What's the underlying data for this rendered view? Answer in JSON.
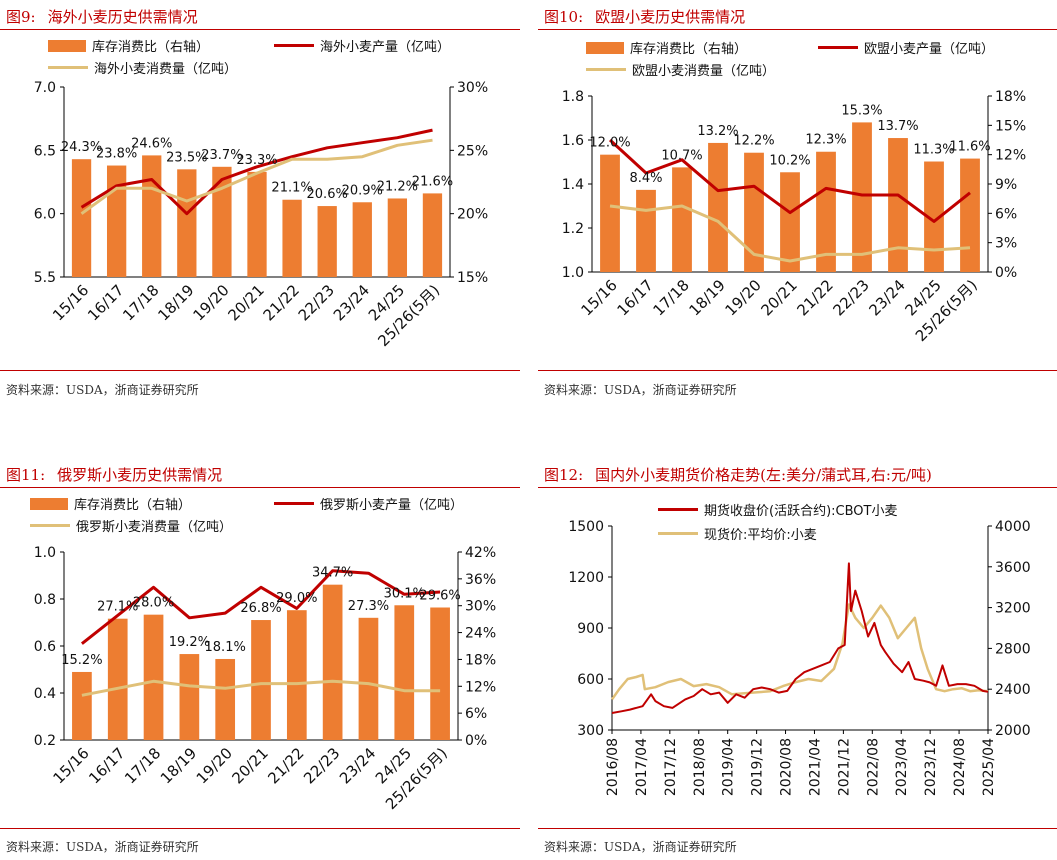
{
  "colors": {
    "bar": "#ed7d31",
    "red": "#c00000",
    "tan": "#e0c078",
    "title": "#c00000"
  },
  "source_text": "资料来源：USDA，浙商证券研究所",
  "charts": [
    {
      "fig_num": "图9:",
      "title": "海外小麦历史供需情况",
      "legend": {
        "bar": "库存消费比（右轴）",
        "line1": "海外小麦产量（亿吨）",
        "line2": "海外小麦消费量（亿吨）"
      },
      "chart_data": {
        "type": "bar+line",
        "categories": [
          "15/16",
          "16/17",
          "17/18",
          "18/19",
          "19/20",
          "20/21",
          "21/22",
          "22/23",
          "23/24",
          "24/25",
          "25/26(5月)"
        ],
        "series": [
          {
            "name": "库存消费比（右轴）",
            "axis": "right",
            "values": [
              24.3,
              23.8,
              24.6,
              23.5,
              23.7,
              23.3,
              21.1,
              20.6,
              20.9,
              21.2,
              21.6
            ],
            "labels": [
              "24.3%",
              "23.8%",
              "24.6%",
              "23.5%",
              "23.7%",
              "23.3%",
              "21.1%",
              "20.6%",
              "20.9%",
              "21.2%",
              "21.6%"
            ]
          },
          {
            "name": "海外小麦产量（亿吨）",
            "axis": "left",
            "values": [
              6.05,
              6.22,
              6.27,
              6.0,
              6.27,
              6.37,
              6.45,
              6.52,
              6.56,
              6.6,
              6.66
            ]
          },
          {
            "name": "海外小麦消费量（亿吨）",
            "axis": "left",
            "values": [
              6.0,
              6.2,
              6.2,
              6.1,
              6.2,
              6.32,
              6.43,
              6.43,
              6.45,
              6.54,
              6.58
            ]
          }
        ],
        "y_left": {
          "min": 5.5,
          "max": 7.0,
          "ticks": [
            "5.5",
            "6.0",
            "6.5",
            "7.0"
          ]
        },
        "y_right": {
          "min": 15,
          "max": 30,
          "ticks": [
            "15%",
            "20%",
            "25%",
            "30%"
          ]
        }
      }
    },
    {
      "fig_num": "图10:",
      "title": "欧盟小麦历史供需情况",
      "legend": {
        "bar": "库存消费比（右轴）",
        "line1": "欧盟小麦产量（亿吨）",
        "line2": "欧盟小麦消费量（亿吨）"
      },
      "chart_data": {
        "type": "bar+line",
        "categories": [
          "15/16",
          "16/17",
          "17/18",
          "18/19",
          "19/20",
          "20/21",
          "21/22",
          "22/23",
          "23/24",
          "24/25",
          "25/26(5月)"
        ],
        "series": [
          {
            "name": "库存消费比（右轴）",
            "axis": "right",
            "values": [
              12.0,
              8.4,
              10.7,
              13.2,
              12.2,
              10.2,
              12.3,
              15.3,
              13.7,
              11.3,
              11.6
            ],
            "labels": [
              "12.0%",
              "8.4%",
              "10.7%",
              "13.2%",
              "12.2%",
              "10.2%",
              "12.3%",
              "15.3%",
              "13.7%",
              "11.3%",
              "11.6%"
            ]
          },
          {
            "name": "欧盟小麦产量（亿吨）",
            "axis": "left",
            "values": [
              1.6,
              1.45,
              1.51,
              1.37,
              1.39,
              1.27,
              1.38,
              1.35,
              1.35,
              1.23,
              1.36
            ]
          },
          {
            "name": "欧盟小麦消费量（亿吨）",
            "axis": "left",
            "values": [
              1.3,
              1.28,
              1.3,
              1.23,
              1.08,
              1.05,
              1.08,
              1.08,
              1.11,
              1.1,
              1.11
            ]
          }
        ],
        "y_left": {
          "min": 1.0,
          "max": 1.8,
          "ticks": [
            "1.0",
            "1.2",
            "1.4",
            "1.6",
            "1.8"
          ]
        },
        "y_right": {
          "min": 0,
          "max": 18,
          "ticks": [
            "0%",
            "3%",
            "6%",
            "9%",
            "12%",
            "15%",
            "18%"
          ]
        }
      }
    },
    {
      "fig_num": "图11:",
      "title": "俄罗斯小麦历史供需情况",
      "legend": {
        "bar": "库存消费比（右轴）",
        "line1": "俄罗斯小麦产量（亿吨）",
        "line2": "俄罗斯小麦消费量（亿吨）"
      },
      "chart_data": {
        "type": "bar+line",
        "categories": [
          "15/16",
          "16/17",
          "17/18",
          "18/19",
          "19/20",
          "20/21",
          "21/22",
          "22/23",
          "23/24",
          "24/25",
          "25/26(5月)"
        ],
        "series": [
          {
            "name": "库存消费比（右轴）",
            "axis": "right",
            "values": [
              15.2,
              27.1,
              28.0,
              19.2,
              18.1,
              26.8,
              29.0,
              34.7,
              27.3,
              30.1,
              29.6
            ],
            "labels": [
              "15.2%",
              "27.1%",
              "28.0%",
              "19.2%",
              "18.1%",
              "26.8%",
              "29.0%",
              "34.7%",
              "27.3%",
              "30.1%",
              "29.6%"
            ]
          },
          {
            "name": "俄罗斯小麦产量（亿吨）",
            "axis": "left",
            "values": [
              0.61,
              0.73,
              0.85,
              0.72,
              0.74,
              0.85,
              0.76,
              0.92,
              0.91,
              0.82,
              0.83
            ]
          },
          {
            "name": "俄罗斯小麦消费量（亿吨）",
            "axis": "left",
            "values": [
              0.39,
              0.42,
              0.45,
              0.43,
              0.42,
              0.44,
              0.44,
              0.45,
              0.44,
              0.41,
              0.41
            ]
          }
        ],
        "y_left": {
          "min": 0.2,
          "max": 1.0,
          "ticks": [
            "0.2",
            "0.4",
            "0.6",
            "0.8",
            "1.0"
          ]
        },
        "y_right": {
          "min": 0,
          "max": 42,
          "ticks": [
            "0%",
            "6%",
            "12%",
            "18%",
            "24%",
            "30%",
            "36%",
            "42%"
          ]
        }
      }
    },
    {
      "fig_num": "图12:",
      "title": "国内外小麦期货价格走势(左:美分/蒲式耳,右:元/吨)",
      "legend": {
        "line1": "期货收盘价(活跃合约):CBOT小麦",
        "line2": "现货价:平均价:小麦"
      },
      "chart_data": {
        "type": "line",
        "x_start": 2016.58,
        "x_end": 2025.42,
        "x_ticks": [
          "2016/08",
          "2017/04",
          "2017/12",
          "2018/08",
          "2019/04",
          "2019/12",
          "2020/08",
          "2021/04",
          "2021/12",
          "2022/08",
          "2023/04",
          "2023/12",
          "2024/08",
          "2025/04"
        ],
        "y_left": {
          "min": 300,
          "max": 1500,
          "ticks": [
            "300",
            "600",
            "900",
            "1200",
            "1500"
          ]
        },
        "y_right": {
          "min": 2000,
          "max": 4000,
          "ticks": [
            "2000",
            "2400",
            "2800",
            "3200",
            "3600",
            "4000"
          ]
        },
        "series": [
          {
            "name": "期货收盘价(活跃合约):CBOT小麦",
            "axis": "left",
            "points": [
              [
                2016.58,
                400
              ],
              [
                2016.8,
                410
              ],
              [
                2017.0,
                420
              ],
              [
                2017.3,
                440
              ],
              [
                2017.5,
                510
              ],
              [
                2017.6,
                470
              ],
              [
                2017.8,
                440
              ],
              [
                2018.0,
                430
              ],
              [
                2018.3,
                480
              ],
              [
                2018.5,
                500
              ],
              [
                2018.7,
                540
              ],
              [
                2018.9,
                510
              ],
              [
                2019.1,
                520
              ],
              [
                2019.3,
                460
              ],
              [
                2019.5,
                510
              ],
              [
                2019.7,
                490
              ],
              [
                2019.9,
                540
              ],
              [
                2020.1,
                550
              ],
              [
                2020.3,
                540
              ],
              [
                2020.5,
                520
              ],
              [
                2020.7,
                530
              ],
              [
                2020.9,
                600
              ],
              [
                2021.1,
                640
              ],
              [
                2021.3,
                660
              ],
              [
                2021.5,
                680
              ],
              [
                2021.7,
                700
              ],
              [
                2021.9,
                780
              ],
              [
                2022.05,
                800
              ],
              [
                2022.15,
                1280
              ],
              [
                2022.2,
                1000
              ],
              [
                2022.3,
                1120
              ],
              [
                2022.45,
                1000
              ],
              [
                2022.6,
                850
              ],
              [
                2022.75,
                930
              ],
              [
                2022.9,
                800
              ],
              [
                2023.0,
                760
              ],
              [
                2023.2,
                690
              ],
              [
                2023.4,
                640
              ],
              [
                2023.55,
                700
              ],
              [
                2023.7,
                600
              ],
              [
                2023.9,
                590
              ],
              [
                2024.05,
                580
              ],
              [
                2024.2,
                560
              ],
              [
                2024.35,
                680
              ],
              [
                2024.5,
                560
              ],
              [
                2024.7,
                570
              ],
              [
                2024.9,
                570
              ],
              [
                2025.1,
                560
              ],
              [
                2025.3,
                530
              ],
              [
                2025.42,
                525
              ]
            ]
          },
          {
            "name": "现货价:平均价:小麦",
            "axis": "right",
            "points": [
              [
                2016.58,
                2300
              ],
              [
                2016.75,
                2400
              ],
              [
                2016.95,
                2500
              ],
              [
                2017.15,
                2520
              ],
              [
                2017.3,
                2540
              ],
              [
                2017.35,
                2400
              ],
              [
                2017.6,
                2420
              ],
              [
                2017.9,
                2470
              ],
              [
                2018.2,
                2500
              ],
              [
                2018.5,
                2430
              ],
              [
                2018.8,
                2450
              ],
              [
                2019.1,
                2420
              ],
              [
                2019.4,
                2350
              ],
              [
                2019.7,
                2360
              ],
              [
                2020.0,
                2370
              ],
              [
                2020.3,
                2380
              ],
              [
                2020.6,
                2430
              ],
              [
                2020.9,
                2470
              ],
              [
                2021.2,
                2500
              ],
              [
                2021.5,
                2480
              ],
              [
                2021.8,
                2600
              ],
              [
                2022.0,
                2850
              ],
              [
                2022.15,
                3230
              ],
              [
                2022.3,
                3100
              ],
              [
                2022.5,
                3000
              ],
              [
                2022.7,
                3100
              ],
              [
                2022.9,
                3220
              ],
              [
                2023.1,
                3100
              ],
              [
                2023.3,
                2900
              ],
              [
                2023.5,
                3000
              ],
              [
                2023.7,
                3100
              ],
              [
                2023.85,
                2800
              ],
              [
                2024.0,
                2600
              ],
              [
                2024.2,
                2400
              ],
              [
                2024.4,
                2380
              ],
              [
                2024.6,
                2400
              ],
              [
                2024.8,
                2410
              ],
              [
                2025.0,
                2380
              ],
              [
                2025.2,
                2390
              ],
              [
                2025.42,
                2380
              ]
            ]
          }
        ]
      }
    }
  ]
}
